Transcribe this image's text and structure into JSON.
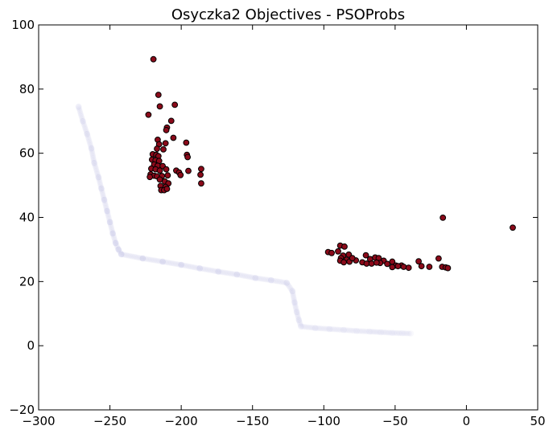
{
  "chart_data": {
    "type": "scatter",
    "title": "Osyczka2 Objectives - PSOProbs",
    "xlabel": "",
    "ylabel": "",
    "xlim": [
      -300,
      50
    ],
    "ylim": [
      -20,
      100
    ],
    "xticks": [
      -300,
      -250,
      -200,
      -150,
      -100,
      -50,
      0,
      50
    ],
    "yticks": [
      -20,
      0,
      20,
      40,
      60,
      80,
      100
    ],
    "grid": false,
    "colors": {
      "points_fill": "#8b0a1a",
      "points_edge": "#000000",
      "front_fill": "#8c8cd2"
    },
    "series": [
      {
        "marker": "circle",
        "points": [
          [
            -219.5,
            89.3
          ],
          [
            -216.0,
            78.2
          ],
          [
            -215.0,
            74.6
          ],
          [
            -204.5,
            75.1
          ],
          [
            -223.0,
            72.0
          ],
          [
            -207.0,
            70.1
          ],
          [
            -210.0,
            68.0
          ],
          [
            -210.5,
            67.2
          ],
          [
            -205.5,
            64.8
          ],
          [
            -216.5,
            64.2
          ],
          [
            -215.5,
            62.8
          ],
          [
            -211.0,
            63.1
          ],
          [
            -196.5,
            63.3
          ],
          [
            -217.0,
            61.4
          ],
          [
            -212.5,
            61.2
          ],
          [
            -220.0,
            59.7
          ],
          [
            -217.5,
            59.5
          ],
          [
            -216.0,
            59.1
          ],
          [
            -196.0,
            59.5
          ],
          [
            -220.5,
            58.0
          ],
          [
            -218.0,
            57.8
          ],
          [
            -215.5,
            57.6
          ],
          [
            -195.5,
            58.8
          ],
          [
            -219.0,
            56.5
          ],
          [
            -216.5,
            56.1
          ],
          [
            -213.0,
            56.0
          ],
          [
            -221.0,
            55.2
          ],
          [
            -218.0,
            55.0
          ],
          [
            -215.0,
            54.6
          ],
          [
            -210.5,
            55.0
          ],
          [
            -186.0,
            55.1
          ],
          [
            -203.5,
            54.6
          ],
          [
            -201.5,
            54.0
          ],
          [
            -195.0,
            54.5
          ],
          [
            -186.5,
            53.3
          ],
          [
            -221.5,
            53.4
          ],
          [
            -219.0,
            53.0
          ],
          [
            -222.0,
            52.6
          ],
          [
            -217.0,
            52.8
          ],
          [
            -213.5,
            52.9
          ],
          [
            -209.5,
            53.1
          ],
          [
            -200.5,
            53.2
          ],
          [
            -215.0,
            51.8
          ],
          [
            -211.5,
            51.2
          ],
          [
            -209.0,
            50.6
          ],
          [
            -214.5,
            49.8
          ],
          [
            -211.0,
            49.5
          ],
          [
            -214.0,
            48.5
          ],
          [
            -212.0,
            48.5
          ],
          [
            -210.0,
            48.9
          ],
          [
            -186.0,
            50.6
          ],
          [
            -16.5,
            39.9
          ],
          [
            32.5,
            36.8
          ],
          [
            -88.5,
            31.2
          ],
          [
            -85.5,
            30.9
          ],
          [
            -97.0,
            29.2
          ],
          [
            -94.5,
            28.9
          ],
          [
            -90.0,
            29.4
          ],
          [
            -86.5,
            28.1
          ],
          [
            -82.5,
            28.4
          ],
          [
            -70.5,
            28.2
          ],
          [
            -88.0,
            27.3
          ],
          [
            -84.0,
            26.8
          ],
          [
            -82.0,
            26.2
          ],
          [
            -77.5,
            26.6
          ],
          [
            -73.0,
            26.0
          ],
          [
            -70.0,
            25.6
          ],
          [
            -67.5,
            27.0
          ],
          [
            -64.0,
            27.5
          ],
          [
            -61.5,
            27.3
          ],
          [
            -58.0,
            26.5
          ],
          [
            -55.5,
            25.5
          ],
          [
            -52.0,
            26.2
          ],
          [
            -49.5,
            25.0
          ],
          [
            -45.5,
            25.0
          ],
          [
            -44.0,
            24.6
          ],
          [
            -40.5,
            24.3
          ],
          [
            -33.5,
            26.3
          ],
          [
            -31.5,
            24.8
          ],
          [
            -26.0,
            24.6
          ],
          [
            -19.5,
            27.2
          ],
          [
            -17.0,
            24.6
          ],
          [
            -14.5,
            24.4
          ],
          [
            -13.0,
            24.2
          ],
          [
            -52.0,
            24.5
          ],
          [
            -48.0,
            24.8
          ],
          [
            -60.5,
            25.8
          ],
          [
            -66.5,
            25.6
          ],
          [
            -88.5,
            26.5
          ],
          [
            -63.0,
            25.9
          ],
          [
            -80.0,
            27.3
          ],
          [
            -86.0,
            26.0
          ]
        ]
      },
      {
        "marker": "circle",
        "style": "translucent",
        "points": [
          [
            -272.0,
            74.5
          ],
          [
            -269.0,
            70.0
          ],
          [
            -266.0,
            66.0
          ],
          [
            -263.0,
            61.5
          ],
          [
            -261.0,
            57.0
          ],
          [
            -258.0,
            52.5
          ],
          [
            -256.0,
            49.0
          ],
          [
            -254.0,
            45.5
          ],
          [
            -252.0,
            42.0
          ],
          [
            -250.0,
            38.5
          ],
          [
            -248.0,
            35.0
          ],
          [
            -246.0,
            32.0
          ],
          [
            -244.0,
            30.0
          ],
          [
            -242.0,
            28.5
          ],
          [
            -227.0,
            27.2
          ],
          [
            -213.0,
            26.2
          ],
          [
            -200.0,
            25.2
          ],
          [
            -187.0,
            24.1
          ],
          [
            -174.0,
            23.1
          ],
          [
            -161.0,
            22.2
          ],
          [
            -148.0,
            21.1
          ],
          [
            -137.0,
            20.4
          ],
          [
            -126.0,
            19.6
          ],
          [
            -122.0,
            17.0
          ],
          [
            -120.5,
            13.5
          ],
          [
            -119.0,
            10.5
          ],
          [
            -117.5,
            8.0
          ],
          [
            -116.0,
            6.0
          ],
          [
            -106.0,
            5.5
          ],
          [
            -96.0,
            5.2
          ],
          [
            -86.0,
            4.9
          ],
          [
            -77.0,
            4.6
          ],
          [
            -68.0,
            4.4
          ],
          [
            -60.0,
            4.2
          ],
          [
            -52.0,
            4.0
          ],
          [
            -45.0,
            3.9
          ],
          [
            -39.0,
            3.8
          ]
        ]
      }
    ]
  }
}
